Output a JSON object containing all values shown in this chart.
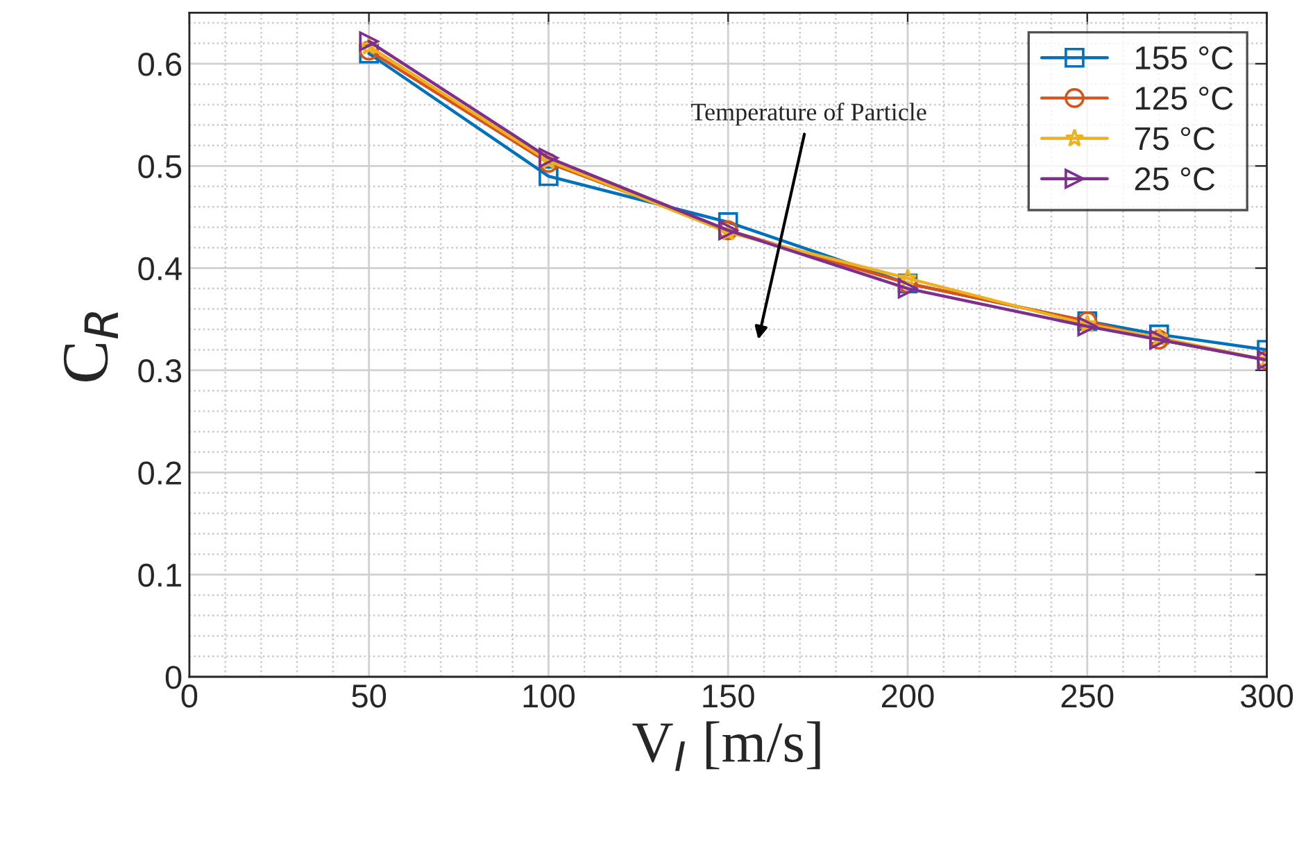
{
  "chart_data": {
    "type": "line",
    "xlabel": "V$_{I}$ [m/s]",
    "ylabel": "C$_{R}$",
    "x": [
      50,
      100,
      150,
      200,
      250,
      270,
      300
    ],
    "series": [
      {
        "name": "155 °C",
        "color": "#0072bd",
        "marker": "square",
        "values": [
          0.61,
          0.49,
          0.445,
          0.385,
          0.348,
          0.335,
          0.32
        ]
      },
      {
        "name": "125 °C",
        "color": "#d95319",
        "marker": "circle",
        "values": [
          0.613,
          0.503,
          0.437,
          0.385,
          0.348,
          0.33,
          0.31
        ]
      },
      {
        "name": "75 °C",
        "color": "#edb120",
        "marker": "star",
        "values": [
          0.617,
          0.505,
          0.435,
          0.39,
          0.345,
          0.332,
          0.31
        ]
      },
      {
        "name": "25 °C",
        "color": "#7e2f8e",
        "marker": "triangle",
        "values": [
          0.622,
          0.508,
          0.437,
          0.38,
          0.343,
          0.33,
          0.31
        ]
      }
    ],
    "xlim": [
      0,
      300
    ],
    "xticks": [
      0,
      50,
      100,
      150,
      200,
      250,
      300
    ],
    "ylim": [
      0,
      0.65
    ],
    "yticks": [
      0,
      0.1,
      0.2,
      0.3,
      0.4,
      0.5,
      0.6
    ],
    "grid": true,
    "legend": "top right",
    "line_style": "solid",
    "annotations": [
      "Temperature of Particle"
    ]
  }
}
